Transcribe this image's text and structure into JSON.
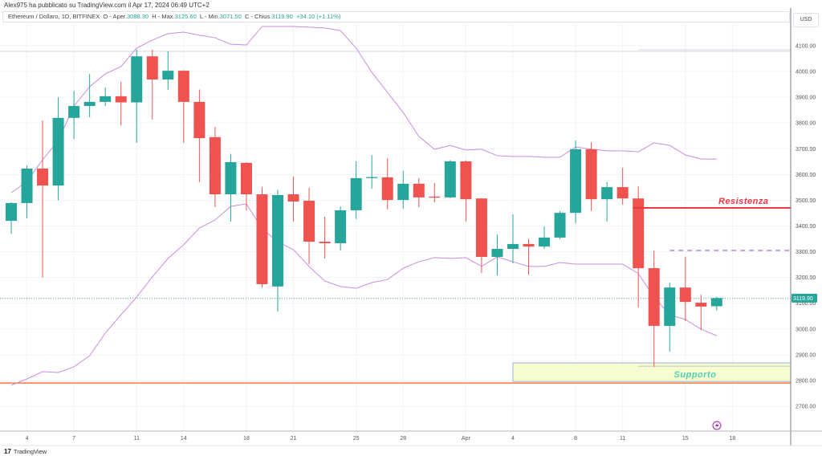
{
  "header": {
    "publisher": "Alex975 ha pubblicato su TradingView.com il Apr 17, 2024 06:49 UTC+2",
    "symbol": "Ethereum / Dollaro, 1D, BITFINEX",
    "open_label": "O - Aper.",
    "open": "3088.30",
    "high_label": "H - Max.",
    "high": "3125.60",
    "low_label": "L - Min.",
    "low": "3071.50",
    "close_label": "C - Chius.",
    "close": "3119.90",
    "change": "+34.10 (+1.11%)"
  },
  "currency": "USD",
  "footer": {
    "logo": "17",
    "brand": "TradingView"
  },
  "colors": {
    "up": "#26a69a",
    "down": "#ef5350",
    "band": "#c98de0",
    "resistance": "#f23645",
    "support_text": "#4fd1b5",
    "orange_line": "#f57c3a",
    "dashed": "#9c5fc9"
  },
  "chart_data": {
    "type": "candlestick",
    "title": "Ethereum / Dollaro, 1D, BITFINEX",
    "ylim": [
      2600,
      4200
    ],
    "y_ticks": [
      "4100.00",
      "4000.00",
      "3900.00",
      "3800.00",
      "3700.00",
      "3600.00",
      "3500.00",
      "3400.00",
      "3300.00",
      "3200.00",
      "3100.00",
      "3000.00",
      "2900.00",
      "2800.00",
      "2700.00"
    ],
    "x_ticks": [
      {
        "label": "4",
        "index": 1
      },
      {
        "label": "7",
        "index": 4
      },
      {
        "label": "11",
        "index": 8
      },
      {
        "label": "14",
        "index": 11
      },
      {
        "label": "18",
        "index": 15
      },
      {
        "label": "21",
        "index": 18
      },
      {
        "label": "25",
        "index": 22
      },
      {
        "label": "28",
        "index": 25
      },
      {
        "label": "Apr",
        "index": 29
      },
      {
        "label": "4",
        "index": 32
      },
      {
        "label": "8",
        "index": 36
      },
      {
        "label": "11",
        "index": 39
      },
      {
        "label": "15",
        "index": 43
      },
      {
        "label": "18",
        "index": 46
      }
    ],
    "candles_ohlc": [
      [
        3420,
        3492,
        3370,
        3489
      ],
      [
        3489,
        3635,
        3430,
        3623
      ],
      [
        3623,
        3810,
        3200,
        3557
      ],
      [
        3557,
        3900,
        3500,
        3820
      ],
      [
        3820,
        3925,
        3738,
        3866
      ],
      [
        3866,
        3990,
        3822,
        3882
      ],
      [
        3882,
        3938,
        3866,
        3904
      ],
      [
        3904,
        3960,
        3790,
        3880
      ],
      [
        3880,
        4085,
        3723,
        4059
      ],
      [
        4059,
        4085,
        3813,
        3969
      ],
      [
        3969,
        4078,
        3928,
        4003
      ],
      [
        4003,
        4005,
        3723,
        3882
      ],
      [
        3882,
        3930,
        3570,
        3741
      ],
      [
        3745,
        3785,
        3473,
        3523
      ],
      [
        3523,
        3680,
        3417,
        3648
      ],
      [
        3645,
        3648,
        3460,
        3523
      ],
      [
        3523,
        3551,
        3161,
        3174
      ],
      [
        3165,
        3540,
        3068,
        3520
      ],
      [
        3523,
        3592,
        3417,
        3495
      ],
      [
        3498,
        3548,
        3252,
        3339
      ],
      [
        3339,
        3436,
        3274,
        3333
      ],
      [
        3333,
        3476,
        3305,
        3461
      ],
      [
        3461,
        3651,
        3427,
        3586
      ],
      [
        3586,
        3676,
        3545,
        3590
      ],
      [
        3589,
        3663,
        3464,
        3501
      ],
      [
        3501,
        3614,
        3467,
        3564
      ],
      [
        3564,
        3586,
        3473,
        3511
      ],
      [
        3514,
        3567,
        3492,
        3510
      ],
      [
        3511,
        3656,
        3508,
        3651
      ],
      [
        3651,
        3655,
        3417,
        3504
      ],
      [
        3507,
        3507,
        3218,
        3280
      ],
      [
        3280,
        3367,
        3208,
        3311
      ],
      [
        3311,
        3445,
        3255,
        3330
      ],
      [
        3330,
        3349,
        3211,
        3320
      ],
      [
        3320,
        3398,
        3311,
        3355
      ],
      [
        3355,
        3458,
        3349,
        3451
      ],
      [
        3451,
        3732,
        3411,
        3698
      ],
      [
        3698,
        3726,
        3458,
        3504
      ],
      [
        3504,
        3570,
        3417,
        3551
      ],
      [
        3551,
        3626,
        3483,
        3507
      ],
      [
        3507,
        3554,
        3083,
        3236
      ],
      [
        3236,
        3305,
        2853,
        3012
      ],
      [
        3012,
        3180,
        2912,
        3161
      ],
      [
        3161,
        3280,
        3030,
        3105
      ],
      [
        3102,
        3133,
        2996,
        3087
      ],
      [
        3088.3,
        3125.6,
        3071.5,
        3119.9
      ]
    ],
    "bollinger_upper": [
      3529,
      3573,
      3657,
      3732,
      3866,
      3941,
      3991,
      4019,
      4091,
      4122,
      4147,
      4153,
      4141,
      4131,
      4106,
      4103,
      4175,
      4175,
      4175,
      4172,
      4169,
      4159,
      4091,
      3997,
      3919,
      3841,
      3748,
      3698,
      3713,
      3695,
      3698,
      3673,
      3670,
      3670,
      3667,
      3667,
      3707,
      3698,
      3692,
      3692,
      3688,
      3723,
      3713,
      3676,
      3660,
      3660
    ],
    "bollinger_lower": [
      2781,
      2806,
      2834,
      2831,
      2853,
      2896,
      2984,
      3055,
      3124,
      3202,
      3274,
      3327,
      3392,
      3423,
      3476,
      3486,
      3389,
      3339,
      3308,
      3243,
      3186,
      3165,
      3158,
      3180,
      3192,
      3236,
      3261,
      3277,
      3274,
      3277,
      3243,
      3280,
      3261,
      3243,
      3243,
      3258,
      3252,
      3252,
      3252,
      3252,
      3215,
      3124,
      3055,
      3037,
      2999,
      2974
    ],
    "last_price": "3119.90",
    "annotations": {
      "resistance": {
        "label": "Resistenza",
        "price": 3470,
        "from_index": 40
      },
      "dashed_level": {
        "price": 3305,
        "from_index": 42
      },
      "support": {
        "label": "Supporto",
        "top": 2868,
        "bottom": 2796,
        "from_index": 32
      },
      "support_line": {
        "price": 2790
      },
      "top_line": {
        "price": 4078
      }
    }
  }
}
